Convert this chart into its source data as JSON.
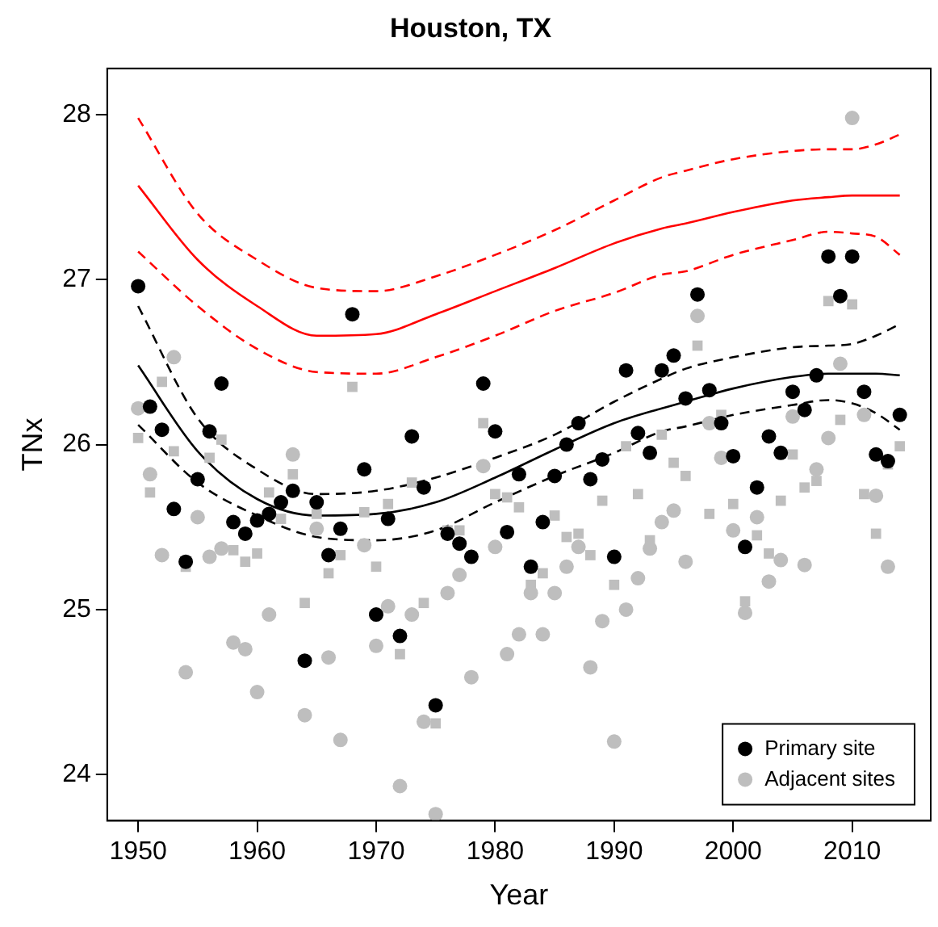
{
  "chart_data": {
    "type": "scatter",
    "title": "Houston, TX",
    "xlabel": "Year",
    "ylabel": "TNx",
    "xlim": [
      1947.4,
      2016.6
    ],
    "ylim": [
      23.72,
      28.28
    ],
    "xticks": [
      1950,
      1960,
      1970,
      1980,
      1990,
      2000,
      2010
    ],
    "yticks": [
      24,
      25,
      26,
      27,
      28
    ],
    "grid": false,
    "legend": "bottom right",
    "x": [
      1950,
      1951,
      1952,
      1953,
      1954,
      1955,
      1956,
      1957,
      1958,
      1959,
      1960,
      1961,
      1962,
      1963,
      1964,
      1965,
      1966,
      1967,
      1968,
      1969,
      1970,
      1971,
      1972,
      1973,
      1974,
      1975,
      1976,
      1977,
      1978,
      1979,
      1980,
      1981,
      1982,
      1983,
      1984,
      1985,
      1986,
      1987,
      1988,
      1989,
      1990,
      1991,
      1992,
      1993,
      1994,
      1995,
      1996,
      1997,
      1998,
      1999,
      2000,
      2001,
      2002,
      2003,
      2004,
      2005,
      2006,
      2007,
      2008,
      2009,
      2010,
      2011,
      2012,
      2013,
      2014
    ],
    "series": [
      {
        "name": "Primary site",
        "color": "#000000",
        "marker": "circle",
        "values": [
          26.96,
          26.23,
          26.09,
          25.61,
          25.29,
          25.79,
          26.08,
          26.37,
          25.53,
          25.46,
          25.54,
          25.58,
          25.65,
          25.72,
          24.69,
          25.65,
          25.33,
          25.49,
          26.79,
          25.85,
          24.97,
          25.55,
          24.84,
          26.05,
          25.74,
          24.42,
          25.46,
          25.4,
          25.32,
          26.37,
          26.08,
          25.47,
          25.82,
          25.26,
          25.53,
          25.81,
          26.0,
          26.13,
          25.79,
          25.91,
          25.32,
          26.45,
          26.07,
          25.95,
          26.45,
          26.54,
          26.28,
          26.91,
          26.33,
          26.13,
          25.93,
          25.38,
          25.74,
          26.05,
          25.95,
          26.32,
          26.21,
          26.42,
          27.14,
          26.9,
          27.14,
          26.32,
          25.94,
          25.9,
          26.18
        ]
      },
      {
        "name": "Adjacent sites",
        "color": "#bebebe",
        "marker": "circle",
        "x": [
          1950,
          1951,
          1952,
          1953,
          1954,
          1955,
          1956,
          1957,
          1958,
          1959,
          1960,
          1961,
          1963,
          1964,
          1965,
          1966,
          1967,
          1969,
          1970,
          1971,
          1972,
          1973,
          1974,
          1975,
          1976,
          1977,
          1978,
          1979,
          1980,
          1981,
          1982,
          1983,
          1984,
          1985,
          1986,
          1987,
          1988,
          1989,
          1990,
          1991,
          1992,
          1993,
          1994,
          1995,
          1996,
          1997,
          1998,
          1999,
          2000,
          2001,
          2002,
          2003,
          2004,
          2005,
          2006,
          2007,
          2008,
          2009,
          2010,
          2011,
          2012,
          2013
        ],
        "values": [
          26.22,
          25.82,
          25.33,
          26.53,
          24.62,
          25.56,
          25.32,
          25.37,
          24.8,
          24.76,
          24.5,
          24.97,
          25.94,
          24.36,
          25.49,
          24.71,
          24.21,
          25.39,
          24.78,
          25.02,
          23.93,
          24.97,
          24.32,
          23.76,
          25.1,
          25.21,
          24.59,
          25.87,
          25.38,
          24.73,
          24.85,
          25.1,
          24.85,
          25.1,
          25.26,
          25.38,
          24.65,
          24.93,
          24.2,
          25.0,
          25.19,
          25.37,
          25.53,
          25.6,
          25.29,
          26.78,
          26.13,
          25.92,
          25.48,
          24.98,
          25.56,
          25.17,
          25.3,
          26.17,
          25.27,
          25.85,
          26.04,
          26.49,
          27.98,
          26.18,
          25.69,
          25.26
        ]
      },
      {
        "color": "#bebebe",
        "marker": "square",
        "x": [
          1950,
          1951,
          1952,
          1953,
          1954,
          1956,
          1957,
          1958,
          1959,
          1960,
          1961,
          1962,
          1963,
          1964,
          1965,
          1966,
          1967,
          1968,
          1969,
          1970,
          1971,
          1972,
          1973,
          1974,
          1975,
          1976,
          1977,
          1979,
          1980,
          1981,
          1982,
          1983,
          1984,
          1985,
          1986,
          1987,
          1988,
          1989,
          1990,
          1991,
          1992,
          1993,
          1994,
          1995,
          1996,
          1997,
          1998,
          1999,
          2000,
          2001,
          2002,
          2003,
          2004,
          2005,
          2006,
          2007,
          2008,
          2009,
          2010,
          2011,
          2012,
          2013,
          2014
        ],
        "values": [
          26.04,
          25.71,
          26.38,
          25.96,
          25.26,
          25.92,
          26.03,
          25.36,
          25.29,
          25.34,
          25.71,
          25.55,
          25.82,
          25.04,
          25.58,
          25.22,
          25.33,
          26.35,
          25.59,
          25.26,
          25.64,
          24.73,
          25.77,
          25.04,
          24.31,
          25.48,
          25.48,
          26.13,
          25.7,
          25.68,
          25.62,
          25.15,
          25.22,
          25.57,
          25.44,
          25.46,
          25.33,
          25.66,
          25.15,
          25.99,
          25.7,
          25.42,
          26.06,
          25.89,
          25.81,
          26.6,
          25.58,
          26.18,
          25.64,
          25.05,
          25.45,
          25.34,
          25.66,
          25.94,
          25.74,
          25.78,
          26.87,
          26.15,
          26.85,
          25.7,
          25.46,
          25.88,
          25.99
        ]
      },
      {
        "type": "line",
        "color": "#000000",
        "marker": "none",
        "line_style": "solid",
        "x": [
          1950,
          1955,
          1960,
          1965,
          1970,
          1975,
          1980,
          1985,
          1990,
          1994,
          1996,
          2000,
          2005,
          2008,
          2010,
          2012,
          2014
        ],
        "values": [
          26.48,
          25.96,
          25.67,
          25.57,
          25.58,
          25.65,
          25.8,
          25.97,
          26.13,
          26.22,
          26.26,
          26.34,
          26.41,
          26.43,
          26.43,
          26.43,
          26.42
        ]
      },
      {
        "type": "line",
        "color": "#000000",
        "marker": "none",
        "line_style": "dashed",
        "x": [
          1950,
          1955,
          1960,
          1965,
          1970,
          1975,
          1980,
          1985,
          1990,
          1994,
          1996,
          2000,
          2005,
          2008,
          2010,
          2012,
          2014
        ],
        "values": [
          26.84,
          26.16,
          25.85,
          25.7,
          25.72,
          25.8,
          25.92,
          26.06,
          26.26,
          26.4,
          26.46,
          26.53,
          26.59,
          26.6,
          26.61,
          26.66,
          26.73
        ]
      },
      {
        "type": "line",
        "color": "#000000",
        "marker": "none",
        "line_style": "dashed",
        "x": [
          1950,
          1955,
          1960,
          1965,
          1970,
          1975,
          1980,
          1985,
          1990,
          1994,
          1996,
          2000,
          2005,
          2008,
          2010,
          2012,
          2014
        ],
        "values": [
          26.12,
          25.77,
          25.57,
          25.44,
          25.42,
          25.48,
          25.65,
          25.81,
          25.95,
          26.08,
          26.11,
          26.18,
          26.24,
          26.27,
          26.25,
          26.19,
          26.09
        ]
      },
      {
        "type": "line",
        "color": "#ff0000",
        "marker": "none",
        "line_style": "solid",
        "x": [
          1950,
          1955,
          1960,
          1965,
          1970,
          1975,
          1980,
          1985,
          1990,
          1994,
          1996,
          2000,
          2005,
          2008,
          2010,
          2012,
          2014
        ],
        "values": [
          27.57,
          27.12,
          26.84,
          26.66,
          26.67,
          26.79,
          26.93,
          27.07,
          27.22,
          27.31,
          27.34,
          27.41,
          27.48,
          27.5,
          27.51,
          27.51,
          27.51
        ]
      },
      {
        "type": "line",
        "color": "#ff0000",
        "marker": "none",
        "line_style": "dashed",
        "x": [
          1950,
          1955,
          1960,
          1965,
          1970,
          1975,
          1980,
          1985,
          1990,
          1994,
          1996,
          2000,
          2005,
          2008,
          2010,
          2012,
          2014
        ],
        "values": [
          27.98,
          27.4,
          27.12,
          26.95,
          26.93,
          27.02,
          27.15,
          27.3,
          27.48,
          27.62,
          27.66,
          27.73,
          27.78,
          27.79,
          27.79,
          27.82,
          27.88
        ]
      },
      {
        "type": "line",
        "color": "#ff0000",
        "marker": "none",
        "line_style": "dashed",
        "x": [
          1950,
          1955,
          1960,
          1965,
          1970,
          1975,
          1980,
          1985,
          1990,
          1994,
          1996,
          2000,
          2005,
          2008,
          2010,
          2012,
          2014
        ],
        "values": [
          27.17,
          26.84,
          26.58,
          26.44,
          26.43,
          26.53,
          26.66,
          26.81,
          26.92,
          27.03,
          27.05,
          27.15,
          27.24,
          27.29,
          27.28,
          27.26,
          27.15
        ]
      }
    ]
  }
}
